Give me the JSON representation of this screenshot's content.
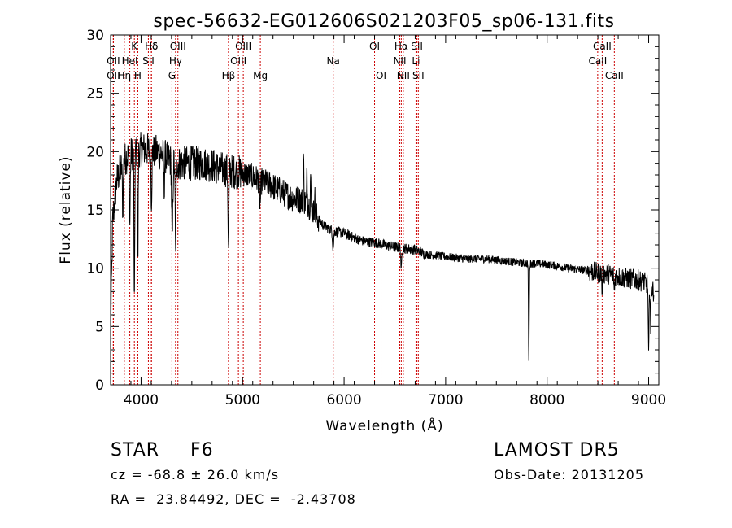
{
  "title": "spec-56632-EG012606S021203F05_sp06-131.fits",
  "info": {
    "object_class": "STAR",
    "subclass": "F6",
    "survey": "LAMOST DR5",
    "cz": "cz = -68.8 ± 26.0 km/s",
    "obs_date": "Obs-Date: 20131205",
    "coords": "RA =  23.84492, DEC =  -2.43708"
  },
  "chart_data": {
    "type": "line",
    "title": "spec-56632-EG012606S021203F05_sp06-131.fits",
    "xlabel": "Wavelength (Å)",
    "ylabel": "Flux (relative)",
    "xlim": [
      3700,
      9100
    ],
    "ylim": [
      0,
      30
    ],
    "xticks": [
      4000,
      5000,
      6000,
      7000,
      8000,
      9000
    ],
    "yticks": [
      0,
      5,
      10,
      15,
      20,
      25,
      30
    ],
    "line_color": "#000000",
    "marker_color": "#cc0000",
    "continuum": {
      "x": [
        3700,
        3720,
        3760,
        3800,
        3850,
        3900,
        3950,
        4000,
        4050,
        4100,
        4150,
        4200,
        4250,
        4300,
        4350,
        4400,
        4500,
        4600,
        4700,
        4800,
        4900,
        5000,
        5100,
        5200,
        5300,
        5400,
        5500,
        5600,
        5650,
        5700,
        5800,
        5900,
        6000,
        6100,
        6200,
        6300,
        6400,
        6500,
        6600,
        6700,
        6800,
        6900,
        7000,
        7100,
        7200,
        7300,
        7400,
        7500,
        7600,
        7700,
        7800,
        7900,
        8000,
        8100,
        8200,
        8300,
        8400,
        8500,
        8600,
        8700,
        8800,
        8900,
        8950,
        9000,
        9050
      ],
      "y": [
        4,
        14,
        17.5,
        18.5,
        19.5,
        19.8,
        20,
        20.2,
        20.2,
        20,
        20,
        19.8,
        19.5,
        19.2,
        19,
        19,
        19,
        19,
        18.8,
        18.5,
        18.3,
        18.2,
        17.8,
        17.5,
        17,
        16.5,
        16,
        15.8,
        15.5,
        14.8,
        13.6,
        13.2,
        13,
        12.6,
        12.3,
        12.2,
        12,
        11.8,
        11.7,
        11.6,
        11.2,
        11.1,
        11,
        10.9,
        10.8,
        10.8,
        10.8,
        10.7,
        10.6,
        10.5,
        10.4,
        10.4,
        10.3,
        10.2,
        10,
        9.9,
        9.8,
        9.6,
        9.5,
        9.3,
        9.1,
        9,
        8.8,
        8.6,
        8
      ]
    },
    "absorption_features": [
      {
        "x": 3820,
        "depth": 4,
        "width": 6
      },
      {
        "x": 3889,
        "depth": 6,
        "width": 6
      },
      {
        "x": 3934,
        "depth": 14,
        "width": 5
      },
      {
        "x": 3968,
        "depth": 10,
        "width": 5
      },
      {
        "x": 4102,
        "depth": 4,
        "width": 6
      },
      {
        "x": 4227,
        "depth": 3,
        "width": 5
      },
      {
        "x": 4307,
        "depth": 7,
        "width": 8
      },
      {
        "x": 4340,
        "depth": 8,
        "width": 6
      },
      {
        "x": 4861,
        "depth": 7,
        "width": 6
      },
      {
        "x": 5173,
        "depth": 2,
        "width": 8
      },
      {
        "x": 5892,
        "depth": 1.5,
        "width": 8
      },
      {
        "x": 6563,
        "depth": 2,
        "width": 6
      },
      {
        "x": 7820,
        "depth": 8.5,
        "width": 5
      },
      {
        "x": 8542,
        "depth": 1.5,
        "width": 5
      },
      {
        "x": 8662,
        "depth": 1.5,
        "width": 5
      },
      {
        "x": 9000,
        "depth": 6,
        "width": 6
      },
      {
        "x": 9020,
        "depth": 4,
        "width": 4
      }
    ],
    "emission_features": [
      {
        "x": 5600,
        "height": 4,
        "width": 4
      },
      {
        "x": 5635,
        "height": 3,
        "width": 4
      },
      {
        "x": 5670,
        "height": 3,
        "width": 4
      },
      {
        "x": 5710,
        "height": 2,
        "width": 4
      }
    ],
    "noise": [
      {
        "from": 3700,
        "to": 5000,
        "amp": 1.5
      },
      {
        "from": 5000,
        "to": 5750,
        "amp": 1.2
      },
      {
        "from": 5750,
        "to": 6800,
        "amp": 0.45
      },
      {
        "from": 6800,
        "to": 8400,
        "amp": 0.35
      },
      {
        "from": 8400,
        "to": 9050,
        "amp": 0.9
      }
    ],
    "line_markers": [
      {
        "label": "Hδ",
        "x": 4102,
        "row": 0
      },
      {
        "label": "K",
        "x": 3934,
        "row": 0
      },
      {
        "label": "Hδ",
        "x": 4102,
        "row": 0
      },
      {
        "label": "OIII",
        "x": 4363,
        "row": 0
      },
      {
        "label": "OIII",
        "x": 5007,
        "row": 0
      },
      {
        "label": "OI",
        "x": 6300,
        "row": 0
      },
      {
        "label": "Hα",
        "x": 6563,
        "row": 0
      },
      {
        "label": "SII",
        "x": 6717,
        "row": 0
      },
      {
        "label": "CaII",
        "x": 8542,
        "row": 0
      },
      {
        "label": "OII",
        "x": 3727,
        "row": 1
      },
      {
        "label": "HeI",
        "x": 3889,
        "row": 1
      },
      {
        "label": "SII",
        "x": 4072,
        "row": 1
      },
      {
        "label": "Hγ",
        "x": 4340,
        "row": 1
      },
      {
        "label": "OIII",
        "x": 4959,
        "row": 1
      },
      {
        "label": "Na",
        "x": 5893,
        "row": 1
      },
      {
        "label": "NII",
        "x": 6548,
        "row": 1
      },
      {
        "label": "Li",
        "x": 6708,
        "row": 1
      },
      {
        "label": "CaII",
        "x": 8498,
        "row": 1
      },
      {
        "label": "OII",
        "x": 3727,
        "row": 2
      },
      {
        "label": "Hη",
        "x": 3835,
        "row": 2
      },
      {
        "label": "H",
        "x": 3968,
        "row": 2
      },
      {
        "label": "G",
        "x": 4304,
        "row": 2
      },
      {
        "label": "Hβ",
        "x": 4861,
        "row": 2
      },
      {
        "label": "Mg",
        "x": 5175,
        "row": 2
      },
      {
        "label": "OI",
        "x": 6364,
        "row": 2
      },
      {
        "label": "NII",
        "x": 6583,
        "row": 2
      },
      {
        "label": "SII",
        "x": 6731,
        "row": 2
      },
      {
        "label": "CaII",
        "x": 8662,
        "row": 2
      }
    ]
  }
}
